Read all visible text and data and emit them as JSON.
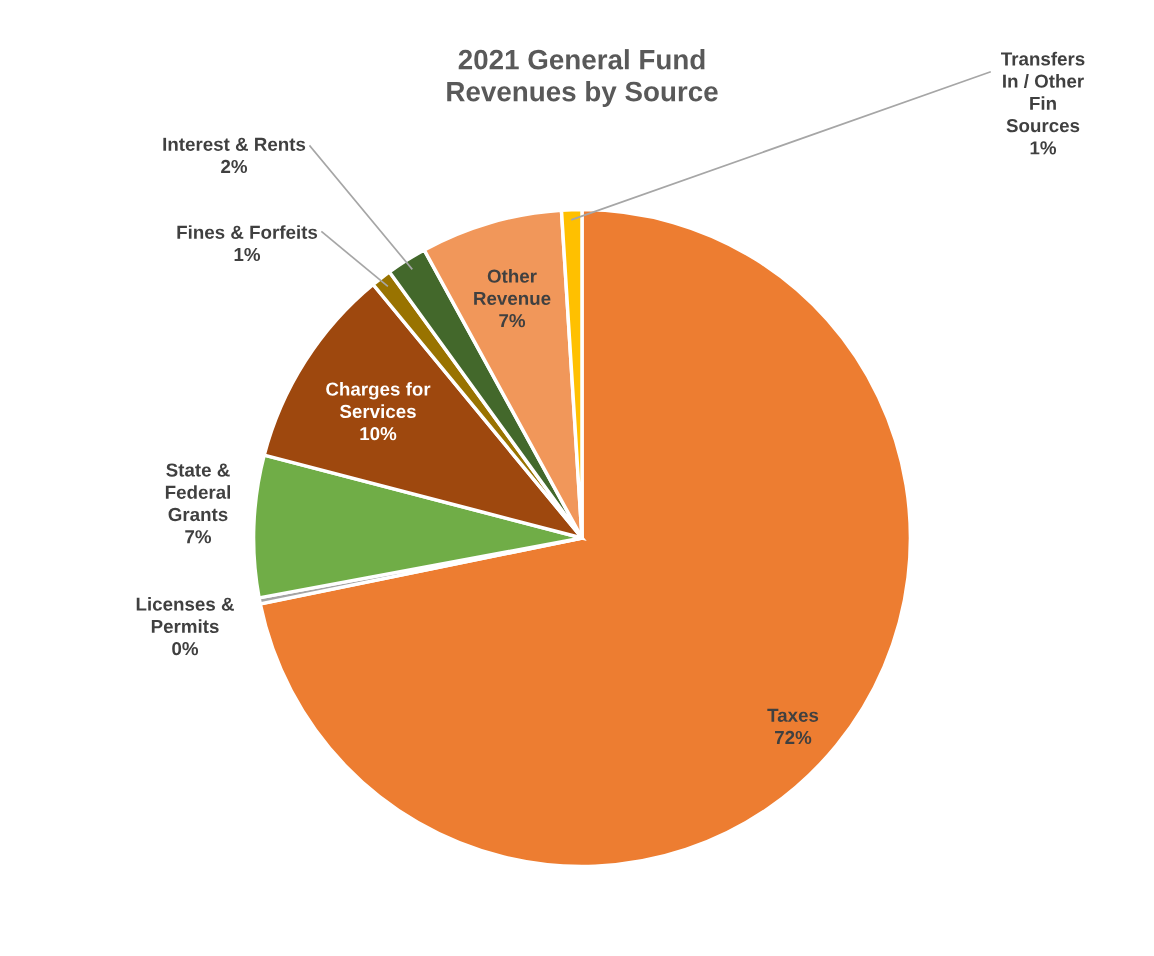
{
  "chart_data": {
    "type": "pie",
    "title": "2021 General Fund\nRevenues by Source",
    "categories": [
      "Taxes",
      "Licenses &\nPermits",
      "State &\nFederal\nGrants",
      "Charges for\nServices",
      "Fines & Forfeits",
      "Interest & Rents",
      "Other\nRevenue",
      "Transfers\nIn / Other\nFin\nSources"
    ],
    "values": [
      72,
      0.3,
      7,
      10,
      1,
      2,
      7,
      1
    ],
    "value_labels": [
      "72%",
      "0%",
      "7%",
      "10%",
      "1%",
      "2%",
      "7%",
      "1%"
    ],
    "colors": [
      "#ed7d31",
      "#a5a5a5",
      "#70ad47",
      "#9e480e",
      "#997300",
      "#43682b",
      "#f1975a",
      "#ffc000"
    ]
  }
}
